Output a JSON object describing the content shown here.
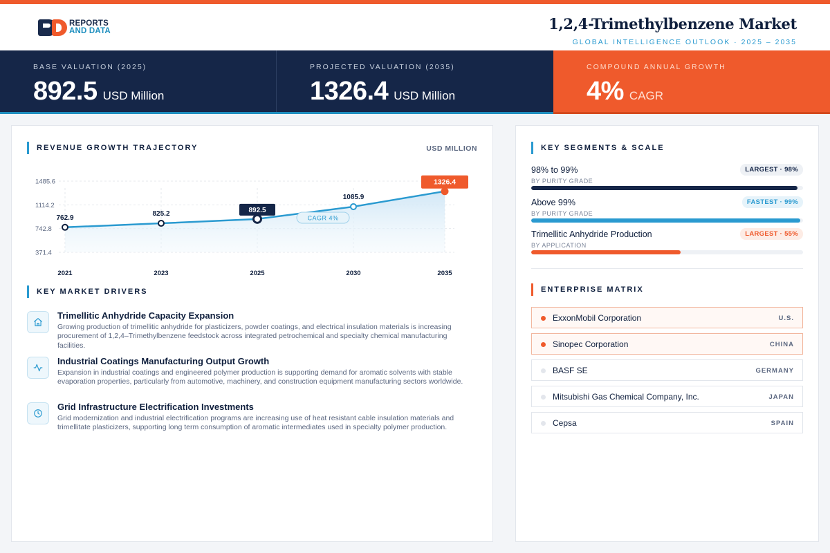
{
  "brand": {
    "line1": "REPORTS",
    "line2": "AND DATA"
  },
  "header": {
    "title": "1,2,4-Trimethylbenzene Market",
    "subtitle": "GLOBAL INTELLIGENCE OUTLOOK  ·  2025 – 2035"
  },
  "kpis": [
    {
      "label": "BASE VALUATION (2025)",
      "value": "892.5",
      "unit": "USD Million"
    },
    {
      "label": "PROJECTED VALUATION (2035)",
      "value": "1326.4",
      "unit": "USD Million"
    },
    {
      "label": "COMPOUND ANNUAL GROWTH",
      "value": "4%",
      "unit": "CAGR"
    }
  ],
  "revenue": {
    "title": "REVENUE GROWTH TRAJECTORY",
    "units": "USD MILLION",
    "cagr_badge": "CAGR 4%"
  },
  "chart_data": {
    "type": "area",
    "title": "REVENUE GROWTH TRAJECTORY",
    "ylabel": "USD MILLION",
    "x": [
      "2021",
      "2023",
      "2025",
      "2030",
      "2035"
    ],
    "values": [
      762.9,
      825.2,
      892.5,
      1085.9,
      1326.4
    ],
    "value_labels": [
      "762.9",
      "825.2",
      "892.5",
      "1085.9",
      "1326.4"
    ],
    "y_ticks": [
      371.4,
      742.8,
      1114.2,
      1485.6
    ],
    "y_tick_labels": [
      "371.4",
      "742.8",
      "1114.2",
      "1485.6"
    ],
    "ylim": [
      371.4,
      1485.6
    ],
    "grid": true,
    "highlight": {
      "base": "2025",
      "end": "2035"
    },
    "colors": {
      "line": "#2a9ad0",
      "fill": "#d8ecf8",
      "base": "#152648",
      "end": "#ef5a2c"
    }
  },
  "drivers": {
    "title": "KEY MARKET DRIVERS",
    "items": [
      {
        "icon": "home-icon",
        "title": "Trimellitic Anhydride Capacity Expansion",
        "desc": "Growing production of trimellitic anhydride for plasticizers, powder coatings, and electrical insulation materials is increasing procurement of 1,2,4–Trimethylbenzene feedstock across integrated petrochemical and specialty chemical manufacturing facilities."
      },
      {
        "icon": "activity-icon",
        "title": "Industrial Coatings Manufacturing Output Growth",
        "desc": "Expansion in industrial coatings and engineered polymer production is supporting demand for aromatic solvents with stable evaporation properties, particularly from automotive, machinery, and construction equipment manufacturing sectors worldwide."
      },
      {
        "icon": "clock-icon",
        "title": "Grid Infrastructure Electrification Investments",
        "desc": "Grid modernization and industrial electrification programs are increasing use of heat resistant cable insulation materials and trimellitate plasticizers, supporting long term consumption of aromatic intermediates used in specialty polymer production."
      }
    ]
  },
  "segments": {
    "title": "KEY SEGMENTS & SCALE",
    "items": [
      {
        "name": "98% to 99%",
        "category": "BY PURITY GRADE",
        "badge": "LARGEST · 98%",
        "share": 0.98,
        "bar_color": "#152648",
        "badge_bg": "#eef1f5",
        "badge_color": "#152648"
      },
      {
        "name": "Above 99%",
        "category": "BY PURITY GRADE",
        "badge": "FASTEST · 99%",
        "share": 0.99,
        "bar_color": "#2a9ad0",
        "badge_bg": "#e6f3fa",
        "badge_color": "#2a9ad0"
      },
      {
        "name": "Trimellitic Anhydride Production",
        "category": "BY APPLICATION",
        "badge": "LARGEST · 55%",
        "share": 0.55,
        "bar_color": "#ef5a2c",
        "badge_bg": "#fdece5",
        "badge_color": "#ef5a2c"
      }
    ]
  },
  "enterprise": {
    "title": "ENTERPRISE MATRIX",
    "items": [
      {
        "name": "ExxonMobil Corporation",
        "country": "U.S.",
        "highlight": true
      },
      {
        "name": "Sinopec Corporation",
        "country": "CHINA",
        "highlight": true
      },
      {
        "name": "BASF SE",
        "country": "GERMANY",
        "highlight": false
      },
      {
        "name": "Mitsubishi Gas Chemical Company, Inc.",
        "country": "JAPAN",
        "highlight": false
      },
      {
        "name": "Cepsa",
        "country": "SPAIN",
        "highlight": false
      }
    ]
  }
}
